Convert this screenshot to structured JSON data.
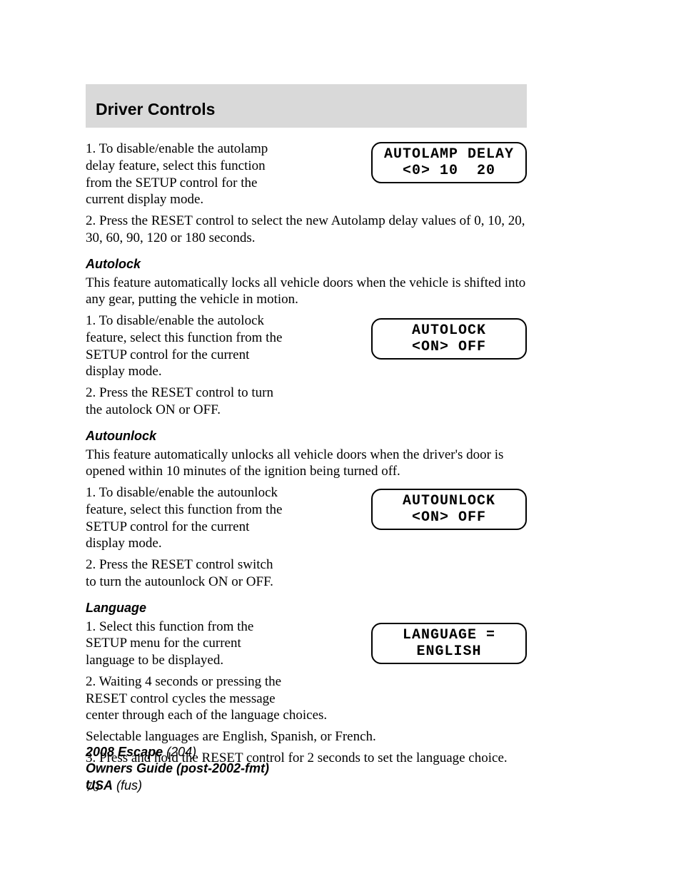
{
  "header": {
    "title": "Driver Controls"
  },
  "sections": {
    "autolamp": {
      "p1": "1. To disable/enable the autolamp delay feature, select this function from the SETUP control for the current display mode.",
      "p2": "2. Press the RESET control to select the new Autolamp delay values of 0, 10, 20, 30, 60, 90, 120 or 180 seconds.",
      "display": {
        "line1": "AUTOLAMP DELAY",
        "line2": "<0> 10  20"
      }
    },
    "autolock": {
      "heading": "Autolock",
      "intro": "This feature automatically locks all vehicle doors when the vehicle is shifted into any gear, putting the vehicle in motion.",
      "p1": "1. To disable/enable the autolock feature, select this function from the SETUP control for the current display mode.",
      "p2": "2. Press the RESET control to turn the autolock ON or OFF.",
      "display": {
        "line1": "AUTOLOCK",
        "line2": "<ON> OFF"
      }
    },
    "autounlock": {
      "heading": "Autounlock",
      "intro": "This feature automatically unlocks all vehicle doors when the driver's door is opened within 10 minutes of the ignition being turned off.",
      "p1": "1. To disable/enable the autounlock feature, select this function from the SETUP control for the current display mode.",
      "p2": "2. Press the RESET control switch to turn the autounlock ON or OFF.",
      "display": {
        "line1": "AUTOUNLOCK",
        "line2": "<ON> OFF"
      }
    },
    "language": {
      "heading": "Language",
      "p1": "1. Select this function from the SETUP menu for the current language to be displayed.",
      "p2": "2. Waiting 4 seconds or pressing the RESET control cycles the message center through each of the language choices.",
      "p3": "Selectable languages are English, Spanish, or French.",
      "p4": "3. Press and hold the RESET control for 2 seconds to set the language choice.",
      "display": {
        "line1": "LANGUAGE =",
        "line2": "ENGLISH"
      }
    }
  },
  "page_number": "70",
  "footer": {
    "line1_bold": "2008 Escape",
    "line1_rest": " (204)",
    "line2": "Owners Guide (post-2002-fmt)",
    "line3_bold": "USA",
    "line3_rest": " (fus)"
  },
  "styling": {
    "header_bg": "#d9d9d9",
    "text_color": "#000000",
    "display_border": "#000000",
    "display_border_radius": 14,
    "body_font": "Times New Roman",
    "heading_font": "Arial",
    "display_font": "Courier New"
  }
}
